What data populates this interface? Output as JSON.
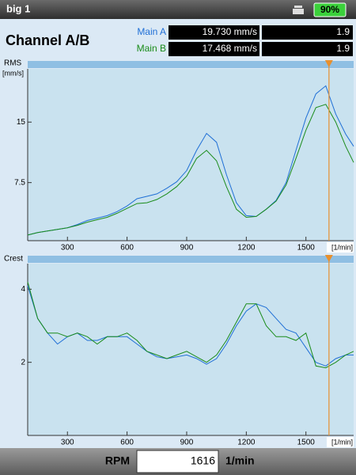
{
  "titlebar": {
    "title": "big 1",
    "battery": "90%"
  },
  "header": {
    "title": "Channel A/B",
    "rows": [
      [
        "Main A",
        "19.730 mm/s",
        "1.9"
      ],
      [
        "Main B",
        "17.468 mm/s",
        "1.9"
      ]
    ]
  },
  "chart_data": [
    {
      "type": "line",
      "title": "RMS",
      "ylabel": "[mm/s]",
      "xlabel": "[1/min]",
      "xlim": [
        100,
        1740
      ],
      "ylim": [
        0.3,
        21.6
      ],
      "xticks": [
        300,
        600,
        900,
        1200,
        1500
      ],
      "yticks": [
        7.5,
        15
      ],
      "cursor_x": 1616,
      "cursor_color": "#e8902e",
      "x": [
        100,
        150,
        200,
        250,
        300,
        350,
        400,
        450,
        500,
        550,
        600,
        650,
        700,
        750,
        800,
        850,
        900,
        950,
        1000,
        1050,
        1100,
        1150,
        1200,
        1250,
        1300,
        1350,
        1400,
        1450,
        1500,
        1550,
        1600,
        1650,
        1700,
        1740
      ],
      "series": [
        {
          "name": "Main A",
          "color": "#1f6fd6",
          "values": [
            1.0,
            1.3,
            1.5,
            1.7,
            1.9,
            2.3,
            2.8,
            3.1,
            3.4,
            3.9,
            4.6,
            5.5,
            5.8,
            6.1,
            6.8,
            7.6,
            9.0,
            11.5,
            13.6,
            12.5,
            8.5,
            5.0,
            3.4,
            3.3,
            4.2,
            5.3,
            7.5,
            11.5,
            15.5,
            18.5,
            19.5,
            16.0,
            13.5,
            12.0
          ]
        },
        {
          "name": "Main B",
          "color": "#1a8c1a",
          "values": [
            1.0,
            1.3,
            1.5,
            1.7,
            1.9,
            2.2,
            2.6,
            2.9,
            3.2,
            3.7,
            4.3,
            4.9,
            5.0,
            5.4,
            6.1,
            7.0,
            8.3,
            10.5,
            11.5,
            10.2,
            7.0,
            4.2,
            3.2,
            3.3,
            4.2,
            5.2,
            7.2,
            10.5,
            14.0,
            16.8,
            17.2,
            15.0,
            12.0,
            10.0
          ]
        }
      ]
    },
    {
      "type": "line",
      "title": "Crest",
      "xlabel": "[1/min]",
      "xlim": [
        100,
        1740
      ],
      "ylim": [
        0,
        4.7
      ],
      "xticks": [
        300,
        600,
        900,
        1200,
        1500
      ],
      "yticks": [
        2,
        4
      ],
      "cursor_x": 1616,
      "cursor_color": "#e8902e",
      "x": [
        100,
        150,
        200,
        250,
        300,
        350,
        400,
        450,
        500,
        550,
        600,
        650,
        700,
        750,
        800,
        850,
        900,
        950,
        1000,
        1050,
        1100,
        1150,
        1200,
        1250,
        1300,
        1350,
        1400,
        1450,
        1500,
        1550,
        1600,
        1650,
        1700,
        1740
      ],
      "series": [
        {
          "name": "Main A",
          "color": "#1f6fd6",
          "values": [
            4.1,
            3.2,
            2.8,
            2.5,
            2.7,
            2.8,
            2.6,
            2.6,
            2.7,
            2.7,
            2.7,
            2.5,
            2.3,
            2.15,
            2.1,
            2.15,
            2.2,
            2.1,
            1.95,
            2.1,
            2.5,
            3.0,
            3.4,
            3.6,
            3.5,
            3.2,
            2.9,
            2.8,
            2.4,
            2.0,
            1.9,
            2.1,
            2.2,
            2.2
          ]
        },
        {
          "name": "Main B",
          "color": "#1a8c1a",
          "values": [
            4.2,
            3.2,
            2.8,
            2.8,
            2.7,
            2.8,
            2.7,
            2.5,
            2.7,
            2.7,
            2.8,
            2.6,
            2.3,
            2.2,
            2.1,
            2.2,
            2.3,
            2.15,
            2.0,
            2.2,
            2.6,
            3.1,
            3.6,
            3.6,
            3.0,
            2.7,
            2.7,
            2.6,
            2.8,
            1.9,
            1.85,
            2.0,
            2.2,
            2.3
          ]
        }
      ]
    }
  ],
  "footer": {
    "label": "RPM",
    "value": "1616",
    "unit": "1/min"
  }
}
